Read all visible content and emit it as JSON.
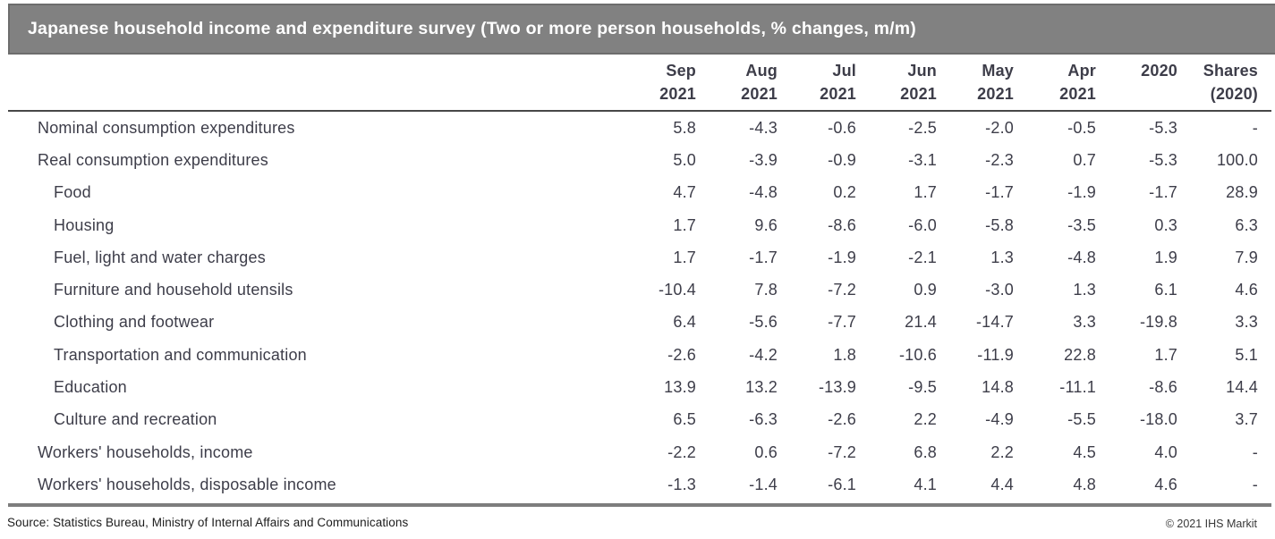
{
  "title_bar": {
    "title": "Japanese household income and expenditure survey (Two or more person households, % changes, m/m)"
  },
  "table": {
    "columns": [
      {
        "line1": "Sep",
        "line2": "2021"
      },
      {
        "line1": "Aug",
        "line2": "2021"
      },
      {
        "line1": "Jul",
        "line2": "2021"
      },
      {
        "line1": "Jun",
        "line2": "2021"
      },
      {
        "line1": "May",
        "line2": "2021"
      },
      {
        "line1": "Apr",
        "line2": "2021"
      },
      {
        "line1": "2020",
        "line2": ""
      },
      {
        "line1": "Shares",
        "line2": "(2020)"
      }
    ],
    "rows": [
      {
        "label": "Nominal consumption expenditures",
        "indent": false,
        "values": [
          "5.8",
          "-4.3",
          "-0.6",
          "-2.5",
          "-2.0",
          "-0.5",
          "-5.3",
          "-"
        ]
      },
      {
        "label": "Real consumption expenditures",
        "indent": false,
        "values": [
          "5.0",
          "-3.9",
          "-0.9",
          "-3.1",
          "-2.3",
          "0.7",
          "-5.3",
          "100.0"
        ]
      },
      {
        "label": "Food",
        "indent": true,
        "values": [
          "4.7",
          "-4.8",
          "0.2",
          "1.7",
          "-1.7",
          "-1.9",
          "-1.7",
          "28.9"
        ]
      },
      {
        "label": "Housing",
        "indent": true,
        "values": [
          "1.7",
          "9.6",
          "-8.6",
          "-6.0",
          "-5.8",
          "-3.5",
          "0.3",
          "6.3"
        ]
      },
      {
        "label": "Fuel, light and water charges",
        "indent": true,
        "values": [
          "1.7",
          "-1.7",
          "-1.9",
          "-2.1",
          "1.3",
          "-4.8",
          "1.9",
          "7.9"
        ]
      },
      {
        "label": "Furniture and household utensils",
        "indent": true,
        "values": [
          "-10.4",
          "7.8",
          "-7.2",
          "0.9",
          "-3.0",
          "1.3",
          "6.1",
          "4.6"
        ]
      },
      {
        "label": "Clothing and footwear",
        "indent": true,
        "values": [
          "6.4",
          "-5.6",
          "-7.7",
          "21.4",
          "-14.7",
          "3.3",
          "-19.8",
          "3.3"
        ]
      },
      {
        "label": "Transportation and communication",
        "indent": true,
        "values": [
          "-2.6",
          "-4.2",
          "1.8",
          "-10.6",
          "-11.9",
          "22.8",
          "1.7",
          "5.1"
        ]
      },
      {
        "label": "Education",
        "indent": true,
        "values": [
          "13.9",
          "13.2",
          "-13.9",
          "-9.5",
          "14.8",
          "-11.1",
          "-8.6",
          "14.4"
        ]
      },
      {
        "label": "Culture and recreation",
        "indent": true,
        "values": [
          "6.5",
          "-6.3",
          "-2.6",
          "2.2",
          "-4.9",
          "-5.5",
          "-18.0",
          "3.7"
        ]
      },
      {
        "label": "Workers' households, income",
        "indent": false,
        "values": [
          "-2.2",
          "0.6",
          "-7.2",
          "6.8",
          "2.2",
          "4.5",
          "4.0",
          "-"
        ]
      },
      {
        "label": "Workers' households, disposable income",
        "indent": false,
        "values": [
          "-1.3",
          "-1.4",
          "-6.1",
          "4.1",
          "4.4",
          "4.8",
          "4.6",
          "-"
        ]
      }
    ]
  },
  "footer": {
    "source": "Source: Statistics Bureau, Ministry of Internal Affairs and Communications",
    "copyright": "© 2021 IHS Markit"
  },
  "colors": {
    "title_bar_bg": "#818181",
    "title_bar_border": "#6d6d6d",
    "title_text": "#ffffff",
    "body_text": "#3d3d49",
    "header_rule": "#484848",
    "bottom_rule": "#7d7d7d"
  },
  "chart_data": {
    "type": "table",
    "title": "Japanese household income and expenditure survey (Two or more person households, % changes, m/m)",
    "columns": [
      "Sep 2021",
      "Aug 2021",
      "Jul 2021",
      "Jun 2021",
      "May 2021",
      "Apr 2021",
      "2020",
      "Shares (2020)"
    ],
    "rows": [
      {
        "label": "Nominal consumption expenditures",
        "values": [
          5.8,
          -4.3,
          -0.6,
          -2.5,
          -2.0,
          -0.5,
          -5.3,
          null
        ]
      },
      {
        "label": "Real consumption expenditures",
        "values": [
          5.0,
          -3.9,
          -0.9,
          -3.1,
          -2.3,
          0.7,
          -5.3,
          100.0
        ]
      },
      {
        "label": "Food",
        "values": [
          4.7,
          -4.8,
          0.2,
          1.7,
          -1.7,
          -1.9,
          -1.7,
          28.9
        ]
      },
      {
        "label": "Housing",
        "values": [
          1.7,
          9.6,
          -8.6,
          -6.0,
          -5.8,
          -3.5,
          0.3,
          6.3
        ]
      },
      {
        "label": "Fuel, light and water charges",
        "values": [
          1.7,
          -1.7,
          -1.9,
          -2.1,
          1.3,
          -4.8,
          1.9,
          7.9
        ]
      },
      {
        "label": "Furniture and household utensils",
        "values": [
          -10.4,
          7.8,
          -7.2,
          0.9,
          -3.0,
          1.3,
          6.1,
          4.6
        ]
      },
      {
        "label": "Clothing and footwear",
        "values": [
          6.4,
          -5.6,
          -7.7,
          21.4,
          -14.7,
          3.3,
          -19.8,
          3.3
        ]
      },
      {
        "label": "Transportation and communication",
        "values": [
          -2.6,
          -4.2,
          1.8,
          -10.6,
          -11.9,
          22.8,
          1.7,
          5.1
        ]
      },
      {
        "label": "Education",
        "values": [
          13.9,
          13.2,
          -13.9,
          -9.5,
          14.8,
          -11.1,
          -8.6,
          14.4
        ]
      },
      {
        "label": "Culture and recreation",
        "values": [
          6.5,
          -6.3,
          -2.6,
          2.2,
          -4.9,
          -5.5,
          -18.0,
          3.7
        ]
      },
      {
        "label": "Workers' households, income",
        "values": [
          -2.2,
          0.6,
          -7.2,
          6.8,
          2.2,
          4.5,
          4.0,
          null
        ]
      },
      {
        "label": "Workers' households, disposable income",
        "values": [
          -1.3,
          -1.4,
          -6.1,
          4.1,
          4.4,
          4.8,
          4.6,
          null
        ]
      }
    ],
    "source": "Source: Statistics Bureau, Ministry of Internal Affairs and Communications",
    "copyright": "© 2021 IHS Markit"
  }
}
